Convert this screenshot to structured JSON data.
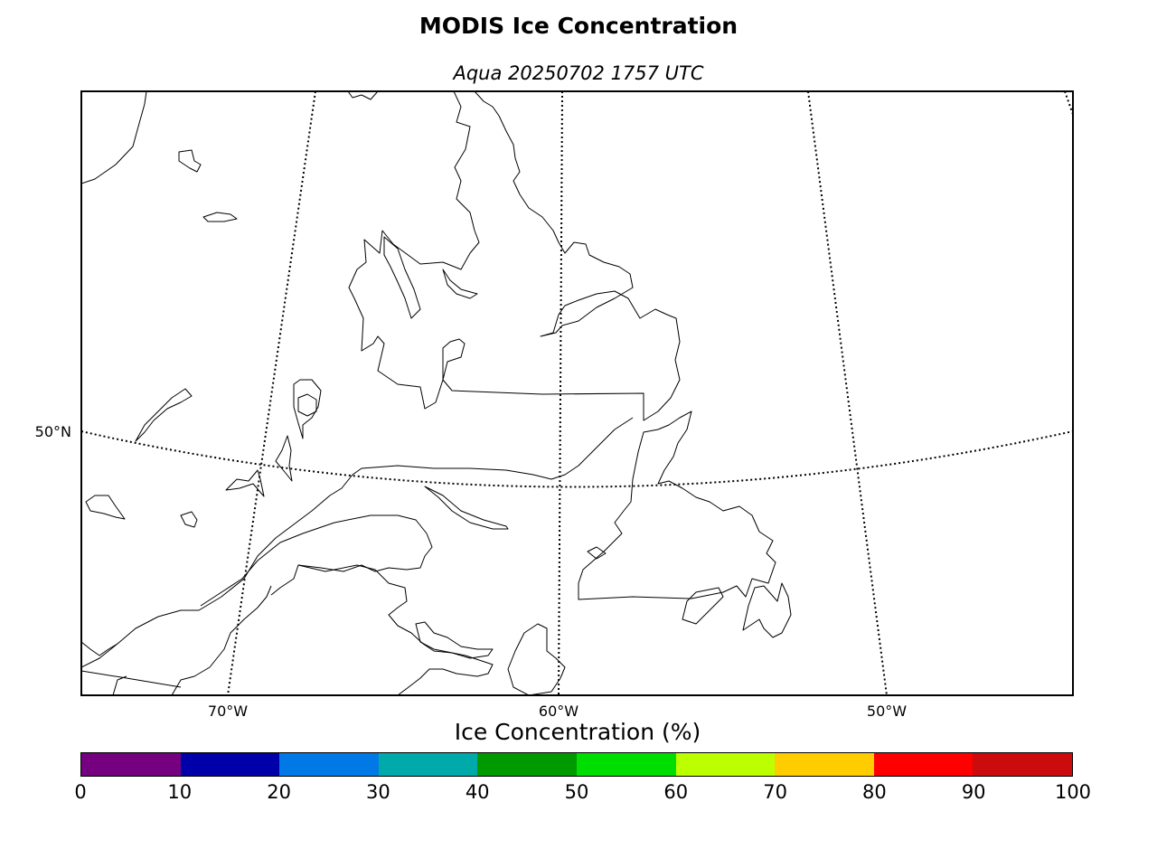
{
  "title": "MODIS Ice Concentration",
  "subtitle": "Aqua 20250702 1757 UTC",
  "map": {
    "graticule_labels": {
      "lat_50": "50°N",
      "lon_70": "70°W",
      "lon_60": "60°W",
      "lon_50": "50°W"
    }
  },
  "colorbar": {
    "title": "Ice Concentration (%)",
    "colors": [
      "#750080",
      "#0000aa",
      "#0078e6",
      "#00aaaa",
      "#009900",
      "#00dd00",
      "#bbff00",
      "#ffcc00",
      "#ff0000",
      "#cc0c0c"
    ],
    "ticks": [
      "0",
      "10",
      "20",
      "30",
      "40",
      "50",
      "60",
      "70",
      "80",
      "90",
      "100"
    ]
  }
}
